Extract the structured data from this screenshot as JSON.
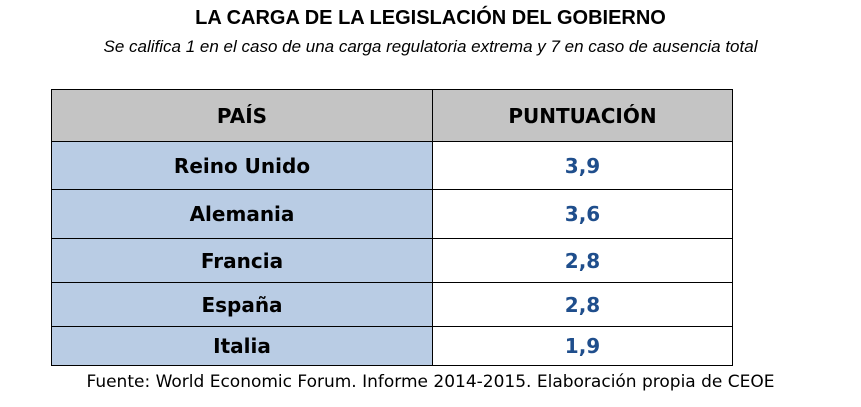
{
  "title": "LA CARGA DE LA LEGISLACIÓN DEL GOBIERNO",
  "subtitle": "Se califica 1 en el caso de una carga regulatoria extrema y 7 en caso de ausencia total",
  "table": {
    "headers": [
      "PAÍS",
      "PUNTUACIÓN"
    ],
    "rows": [
      {
        "country": "Reino Unido",
        "score": "3,9"
      },
      {
        "country": "Alemania",
        "score": "3,6"
      },
      {
        "country": "Francia",
        "score": "2,8"
      },
      {
        "country": "España",
        "score": "2,8"
      },
      {
        "country": "Italia",
        "score": "1,9"
      }
    ]
  },
  "source": "Fuente: World Economic Forum. Informe 2014-2015. Elaboración propia de CEOE",
  "colors": {
    "header_bg": "#c4c4c4",
    "country_bg": "#b9cce4",
    "score_text": "#1f4e8c"
  }
}
